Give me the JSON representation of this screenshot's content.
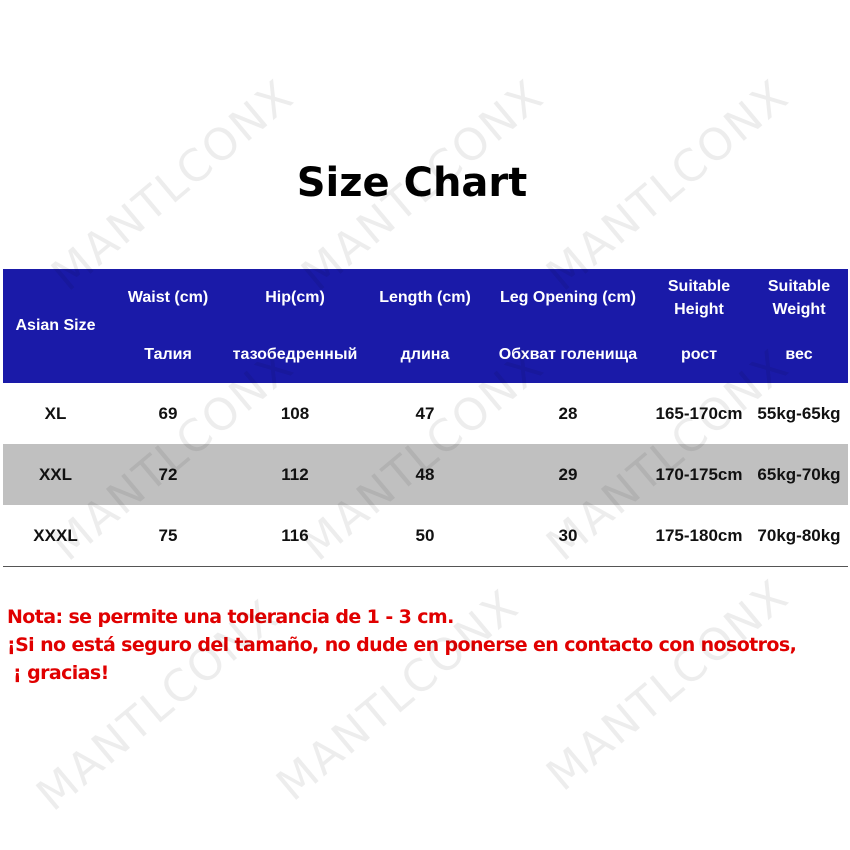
{
  "title": "Size Chart",
  "watermark": "MANTLCONX",
  "table": {
    "headers": [
      {
        "en": "Asian Size",
        "ru": ""
      },
      {
        "en": "Waist (cm)",
        "ru": "Талия"
      },
      {
        "en": "Hip(cm)",
        "ru": "тазобедренный"
      },
      {
        "en": "Length (cm)",
        "ru": "длина"
      },
      {
        "en": "Leg Opening (cm)",
        "ru": "Обхват голенища"
      },
      {
        "en": "Suitable Height",
        "ru": "рост"
      },
      {
        "en": "Suitable Weight",
        "ru": "вес"
      }
    ],
    "rows": [
      [
        "XL",
        "69",
        "108",
        "47",
        "28",
        "165-170cm",
        "55kg-65kg"
      ],
      [
        "XXL",
        "72",
        "112",
        "48",
        "29",
        "170-175cm",
        "65kg-70kg"
      ],
      [
        "XXXL",
        "75",
        "116",
        "50",
        "30",
        "175-180cm",
        "70kg-80kg"
      ]
    ]
  },
  "notes": [
    "Nota: se permite una tolerancia de 1 - 3 cm.",
    "¡Si no está seguro del tamaño, no dude en ponerse en contacto con nosotros,",
    " ¡ gracias!"
  ],
  "colors": {
    "header_bg": "#1a1aa8",
    "alt_row": "#c0c0c0",
    "note_text": "#e00000"
  }
}
